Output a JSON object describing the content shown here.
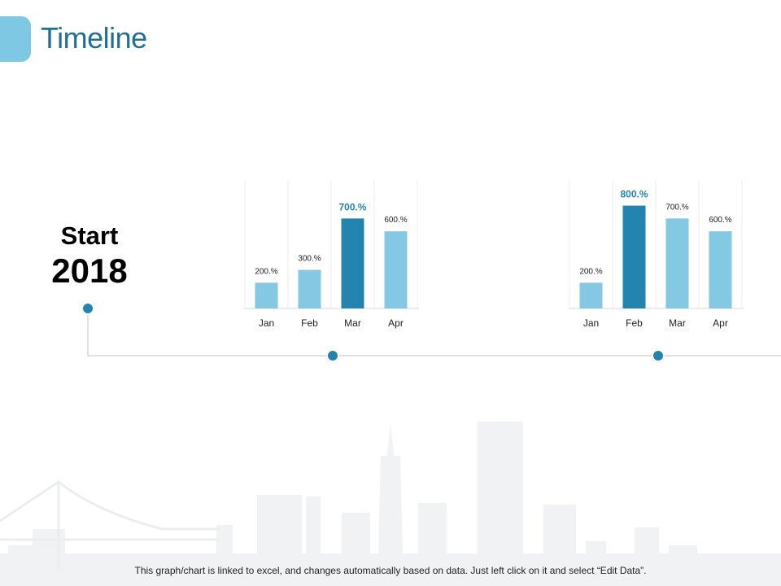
{
  "slide": {
    "title": "Timeline",
    "start_label": "Start",
    "start_year": "2018",
    "footer_note": "This graph/chart is linked to excel, and changes automatically based on data. Just left click on it and select “Edit Data”."
  },
  "colors": {
    "accent": "#7ec8e3",
    "highlight": "#2384b0",
    "bar": "#85c8e4",
    "timeline": "#2384b0",
    "title": "#1f6f96"
  },
  "chart_data": [
    {
      "type": "bar",
      "categories": [
        "Jan",
        "Feb",
        "Mar",
        "Apr"
      ],
      "values": [
        200,
        300,
        700,
        600
      ],
      "labels": [
        "200.%",
        "300.%",
        "700.%",
        "600.%"
      ],
      "highlight_index": 2,
      "ylim": [
        0,
        1000
      ],
      "grid": true
    },
    {
      "type": "bar",
      "categories": [
        "Jan",
        "Feb",
        "Mar",
        "Apr"
      ],
      "values": [
        200,
        800,
        700,
        600
      ],
      "labels": [
        "200.%",
        "800.%",
        "700.%",
        "600.%"
      ],
      "highlight_index": 1,
      "ylim": [
        0,
        1000
      ],
      "grid": true
    }
  ]
}
